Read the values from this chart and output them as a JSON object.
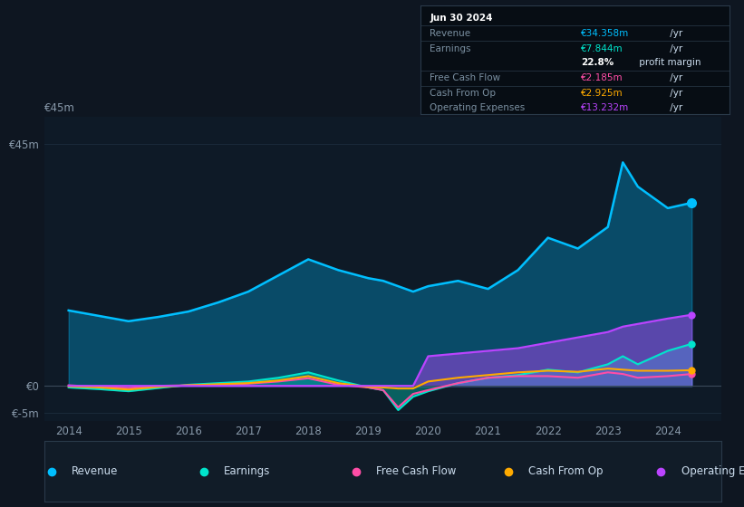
{
  "bg_color": "#0e1621",
  "plot_bg_color": "#0e1a27",
  "grid_color": "#1a2a3a",
  "title_box": {
    "date": "Jun 30 2024",
    "revenue_label": "Revenue",
    "revenue_val": "€34.358m",
    "revenue_suffix": " /yr",
    "earnings_label": "Earnings",
    "earnings_val": "€7.844m",
    "earnings_suffix": " /yr",
    "margin_val": "22.8%",
    "margin_suffix": " profit margin",
    "fcf_label": "Free Cash Flow",
    "fcf_val": "€2.185m",
    "fcf_suffix": " /yr",
    "cashop_label": "Cash From Op",
    "cashop_val": "€2.925m",
    "cashop_suffix": " /yr",
    "opex_label": "Operating Expenses",
    "opex_val": "€13.232m",
    "opex_suffix": " /yr",
    "revenue_color": "#00bfff",
    "earnings_color": "#00e5cc",
    "fcf_color": "#ff4da6",
    "cashop_color": "#ffaa00",
    "opex_color": "#bb44ff",
    "label_color": "#7a8fa0",
    "val_text_color": "#ccddee",
    "margin_pct_color": "#ffffff",
    "date_color": "#ffffff"
  },
  "years": [
    2014,
    2014.5,
    2015,
    2015.5,
    2016,
    2016.5,
    2017,
    2017.5,
    2018,
    2018.5,
    2019,
    2019.25,
    2019.5,
    2019.75,
    2020,
    2020.5,
    2021,
    2021.5,
    2022,
    2022.5,
    2023,
    2023.25,
    2023.5,
    2024,
    2024.4
  ],
  "revenue": [
    14.0,
    13.0,
    12.0,
    12.8,
    13.8,
    15.5,
    17.5,
    20.5,
    23.5,
    21.5,
    20.0,
    19.5,
    18.5,
    17.5,
    18.5,
    19.5,
    18.0,
    21.5,
    27.5,
    25.5,
    29.5,
    41.5,
    37.0,
    33.0,
    34.0
  ],
  "earnings": [
    -0.3,
    -0.6,
    -1.0,
    -0.4,
    0.2,
    0.5,
    0.8,
    1.5,
    2.5,
    1.0,
    -0.3,
    -0.8,
    -4.5,
    -2.0,
    -1.0,
    0.5,
    1.5,
    2.0,
    3.0,
    2.5,
    4.0,
    5.5,
    4.0,
    6.5,
    7.8
  ],
  "free_cash_flow": [
    0.1,
    -0.2,
    -0.4,
    0.0,
    0.1,
    0.2,
    0.4,
    0.8,
    1.4,
    0.2,
    -0.3,
    -0.8,
    -4.0,
    -1.5,
    -0.8,
    0.5,
    1.5,
    1.8,
    1.8,
    1.5,
    2.5,
    2.2,
    1.5,
    1.8,
    2.2
  ],
  "cash_from_op": [
    -0.1,
    -0.3,
    -0.7,
    -0.2,
    0.1,
    0.3,
    0.5,
    1.0,
    1.8,
    0.5,
    -0.2,
    -0.3,
    -0.5,
    -0.5,
    0.8,
    1.5,
    2.0,
    2.5,
    2.8,
    2.6,
    3.2,
    3.0,
    2.8,
    2.8,
    2.9
  ],
  "op_expenses": [
    0.0,
    0.0,
    0.0,
    0.0,
    0.0,
    0.0,
    0.0,
    0.0,
    0.0,
    0.0,
    0.0,
    0.0,
    0.0,
    0.0,
    5.5,
    6.0,
    6.5,
    7.0,
    8.0,
    9.0,
    10.0,
    11.0,
    11.5,
    12.5,
    13.2
  ],
  "ylim": [
    -6.5,
    50
  ],
  "ytick_positions": [
    -5,
    0,
    45
  ],
  "ytick_labels": [
    "€-5m",
    "€0",
    "€45m"
  ],
  "xlim": [
    2013.6,
    2024.9
  ],
  "xticks": [
    2014,
    2015,
    2016,
    2017,
    2018,
    2019,
    2020,
    2021,
    2022,
    2023,
    2024
  ],
  "revenue_color": "#00bfff",
  "earnings_color": "#00e5cc",
  "fcf_color": "#ff4da6",
  "cashop_color": "#ffaa00",
  "opex_color": "#bb44ff",
  "legend_labels": [
    "Revenue",
    "Earnings",
    "Free Cash Flow",
    "Cash From Op",
    "Operating Expenses"
  ],
  "legend_colors": [
    "#00bfff",
    "#00e5cc",
    "#ff4da6",
    "#ffaa00",
    "#bb44ff"
  ]
}
